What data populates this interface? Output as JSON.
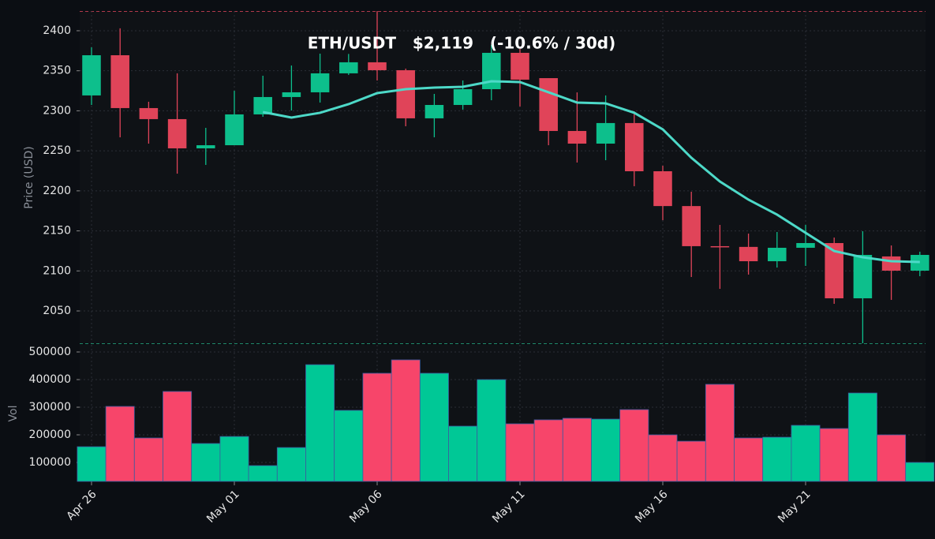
{
  "chart_data": {
    "type": "candlestick",
    "title": "ETH/USDT   $2,119   (-10.6% / 30d)",
    "ylabel": "Price (USD)",
    "categories": [
      "Apr 26",
      null,
      null,
      null,
      null,
      "May 01",
      null,
      null,
      null,
      null,
      "May 06",
      null,
      null,
      null,
      null,
      "May 11",
      null,
      null,
      null,
      null,
      "May 16",
      null,
      null,
      null,
      null,
      "May 21",
      null,
      null,
      null,
      null
    ],
    "open": [
      2319.2,
      2369.4,
      2303.4,
      2289.6,
      2253.1,
      2257.0,
      2295.5,
      2317.2,
      2323.1,
      2346.8,
      2360.6,
      2350.7,
      2290.6,
      2307.3,
      2327.0,
      2372.4,
      2340.8,
      2274.8,
      2259.0,
      2284.7,
      2224.5,
      2181.0,
      2130.9,
      2130.0,
      2112.1,
      2128.9,
      2134.8,
      2065.8,
      2118.1,
      2100.3
    ],
    "high": [
      2379.3,
      2403.0,
      2311.3,
      2346.8,
      2278.7,
      2325.0,
      2343.8,
      2356.6,
      2371.4,
      2371.0,
      2424.6,
      2352.7,
      2321.1,
      2337.9,
      2382.3,
      2377.3,
      2340.8,
      2323.0,
      2319.2,
      2299.4,
      2231.4,
      2198.9,
      2157.5,
      2146.6,
      2148.6,
      2157.5,
      2141.7,
      2149.6,
      2131.8,
      2124.0
    ],
    "low": [
      2307.3,
      2266.9,
      2259.0,
      2221.5,
      2232.4,
      2257.0,
      2292.5,
      2300.4,
      2310.3,
      2344.8,
      2337.9,
      2280.7,
      2266.9,
      2301.4,
      2313.2,
      2305.4,
      2257.0,
      2235.4,
      2238.3,
      2205.8,
      2163.4,
      2092.4,
      2077.6,
      2095.4,
      2104.2,
      2106.2,
      2058.9,
      2009.6,
      2063.8,
      2093.4
    ],
    "close": [
      2369.4,
      2303.4,
      2289.6,
      2253.1,
      2257.0,
      2295.5,
      2317.2,
      2323.1,
      2346.8,
      2360.6,
      2350.7,
      2290.6,
      2307.3,
      2327.0,
      2372.4,
      2338.9,
      2274.8,
      2259.0,
      2284.7,
      2224.5,
      2181.0,
      2130.9,
      2130.0,
      2112.1,
      2128.9,
      2134.8,
      2065.8,
      2120.0,
      2100.3,
      2120.0
    ],
    "up_color": "#0dbf8c",
    "down_color": "#e04459",
    "ylim": [
      2009.6,
      2424.6
    ],
    "yticks": [
      2050,
      2100,
      2150,
      2200,
      2250,
      2300,
      2350,
      2400
    ],
    "grid": true,
    "moving_average": {
      "color": "#4dd9c8",
      "values": [
        null,
        null,
        null,
        null,
        null,
        null,
        2298.4,
        2291.6,
        2297.5,
        2308.3,
        2322.1,
        2327.0,
        2329.0,
        2330.0,
        2336.9,
        2335.9,
        2323.1,
        2310.3,
        2309.3,
        2297.5,
        2276.8,
        2241.3,
        2211.7,
        2189.0,
        2170.3,
        2147.6,
        2124.9,
        2117.0,
        2112.1,
        2111.1
      ]
    },
    "volume": {
      "ylabel": "Vol",
      "up_color": "#00c896",
      "down_color": "#f7456a",
      "values": [
        157000,
        302900,
        188600,
        357000,
        168600,
        194000,
        88600,
        154000,
        454000,
        288600,
        422900,
        471400,
        422900,
        231400,
        400000,
        240000,
        254300,
        260000,
        257000,
        291400,
        200000,
        177000,
        382900,
        188600,
        191400,
        234300,
        222900,
        351400,
        200000,
        100000
      ],
      "ylim": [
        31400,
        525700
      ],
      "yticks": [
        100000,
        200000,
        300000,
        400000,
        500000
      ]
    }
  }
}
